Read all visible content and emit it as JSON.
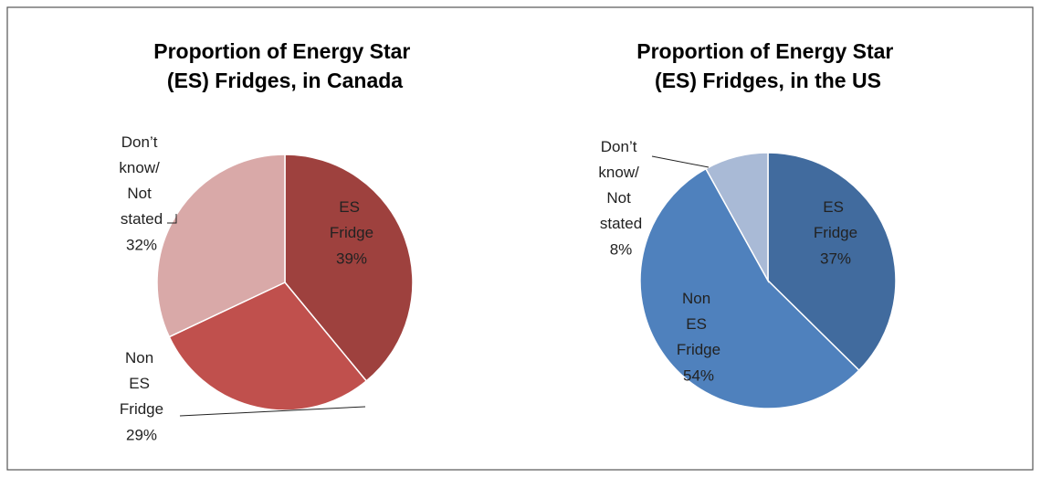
{
  "chart_data": [
    {
      "type": "pie",
      "title": "Proportion of Energy Star (ES) Fridges, in Canada",
      "categories": [
        "ES Fridge",
        "Non ES Fridge",
        "Don’t know/ Not stated"
      ],
      "values": [
        39,
        29,
        32
      ],
      "value_labels": [
        "39%",
        "29%",
        "32%"
      ],
      "colors": [
        "#9e413e",
        "#c0504d",
        "#d9a9a8"
      ]
    },
    {
      "type": "pie",
      "title": "Proportion of Energy Star (ES) Fridges, in the US",
      "categories": [
        "ES Fridge",
        "Non ES Fridge",
        "Don’t know/ Not stated"
      ],
      "values": [
        37,
        54,
        8
      ],
      "value_labels": [
        "37%",
        "54%",
        "8%"
      ],
      "colors": [
        "#416b9e",
        "#4f81bd",
        "#a9bad6"
      ]
    }
  ]
}
